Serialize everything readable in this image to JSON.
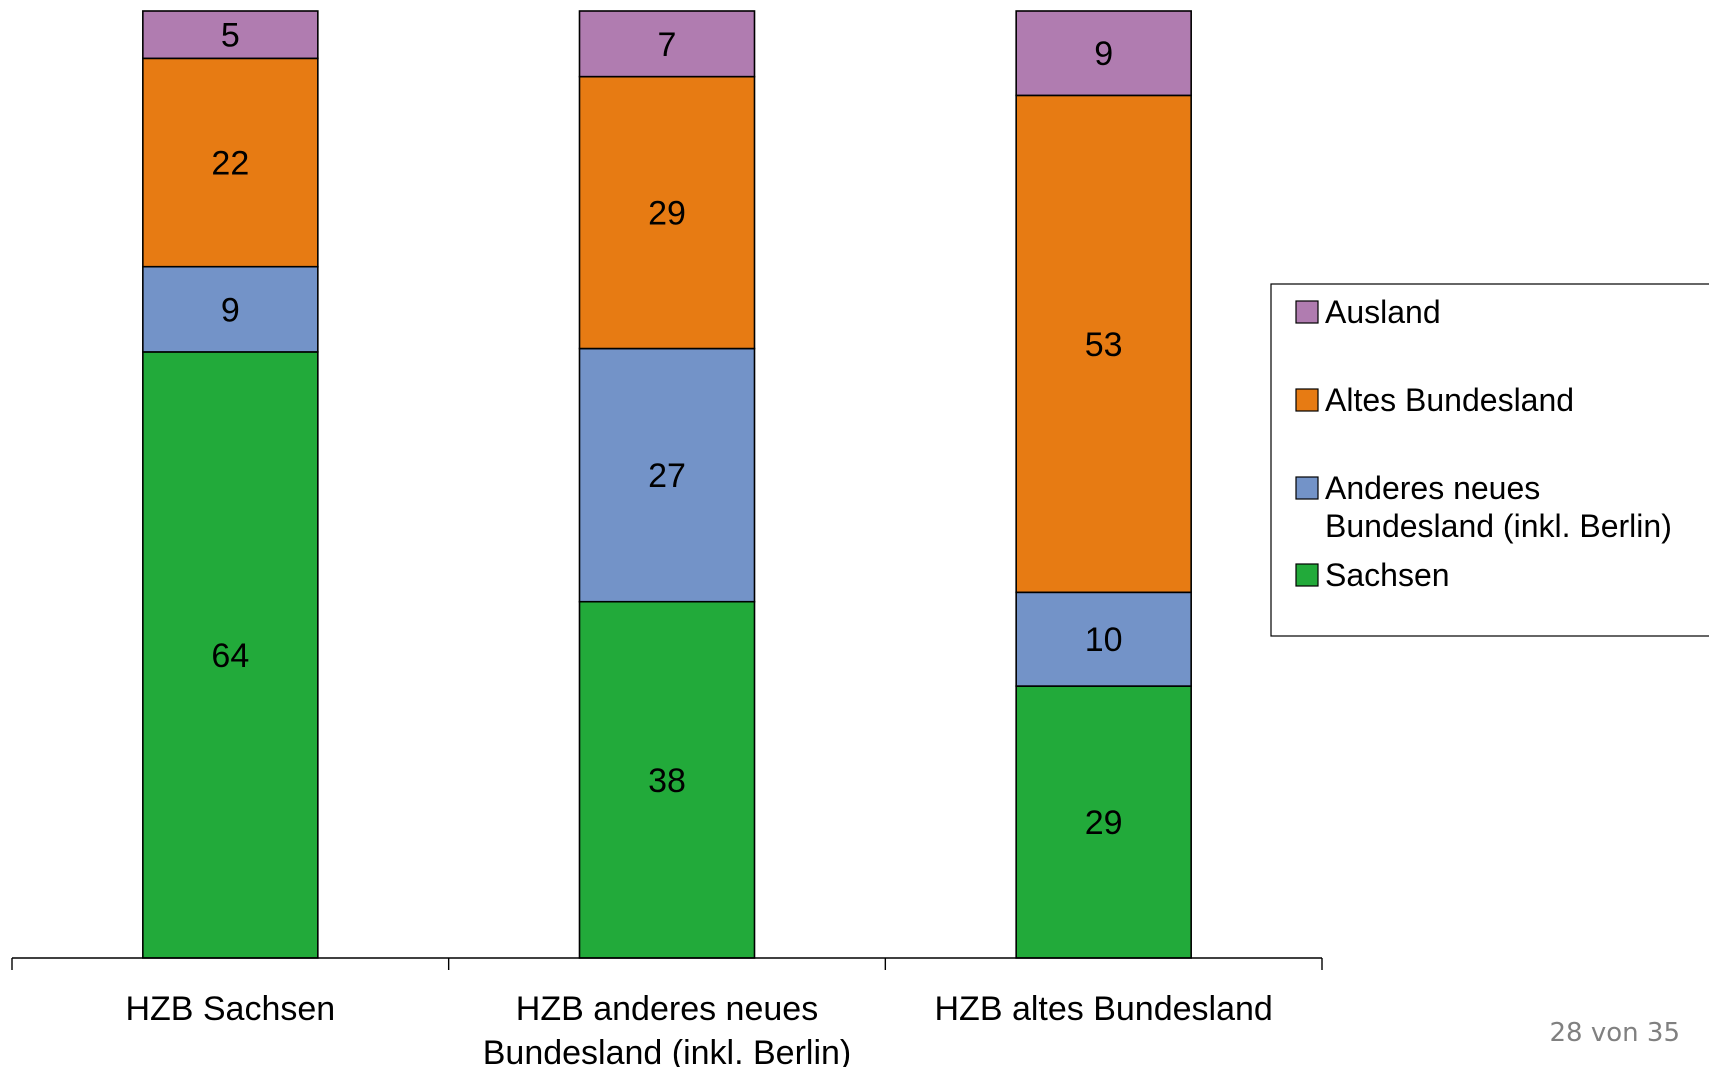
{
  "chart_data": {
    "type": "bar",
    "stacked": true,
    "orientation": "vertical",
    "categories": [
      [
        "HZB Sachsen"
      ],
      [
        "HZB anderes neues",
        "Bundesland (inkl. Berlin)"
      ],
      [
        "HZB altes Bundesland"
      ]
    ],
    "series": [
      {
        "name": "Sachsen",
        "color": "#22AA3A",
        "values": [
          64,
          38,
          29
        ]
      },
      {
        "name": "Anderes neues Bundesland (inkl. Berlin)",
        "legend_lines": [
          "Anderes neues",
          "Bundesland (inkl. Berlin)"
        ],
        "color": "#7393C8",
        "values": [
          9,
          27,
          10
        ]
      },
      {
        "name": "Altes Bundesland",
        "color": "#E77B13",
        "values": [
          22,
          29,
          53
        ]
      },
      {
        "name": "Ausland",
        "color": "#B07CB0",
        "values": [
          5,
          7,
          9
        ]
      }
    ],
    "legend_order": [
      "Ausland",
      "Altes Bundesland",
      "Anderes neues Bundesland (inkl. Berlin)",
      "Sachsen"
    ],
    "legend_position": "right",
    "grid": false,
    "y_axis_visible": false,
    "data_labels": true
  },
  "footer": {
    "page_number": "28 von 35"
  }
}
